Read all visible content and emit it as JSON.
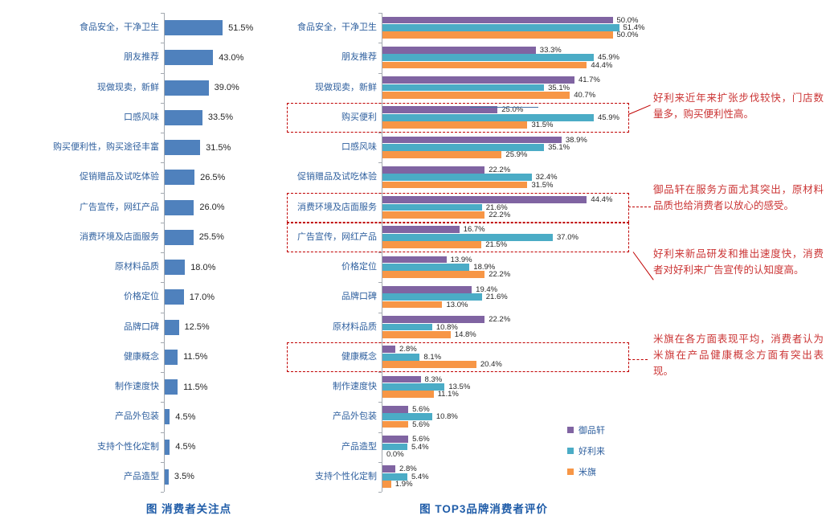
{
  "page": {
    "background": "#ffffff"
  },
  "chart_data": [
    {
      "type": "bar",
      "orientation": "horizontal",
      "title": "图  消费者关注点",
      "bar_color": "#4F81BD",
      "value_format": "percent_1dp",
      "xlim": [
        0,
        60
      ],
      "grid": false,
      "categories": [
        "食品安全，干净卫生",
        "朋友推荐",
        "现做现卖，新鲜",
        "口感风味",
        "购买便利性，购买途径丰富",
        "促销赠品及试吃体验",
        "广告宣传，网红产品",
        "消费环境及店面服务",
        "原材料品质",
        "价格定位",
        "品牌口碑",
        "健康概念",
        "制作速度快",
        "产品外包装",
        "支持个性化定制",
        "产品造型"
      ],
      "values": [
        51.5,
        43.0,
        39.0,
        33.5,
        31.5,
        26.5,
        26.0,
        25.5,
        18.0,
        17.0,
        12.5,
        11.5,
        11.5,
        4.5,
        4.5,
        3.5
      ]
    },
    {
      "type": "bar",
      "orientation": "horizontal",
      "title": "图 TOP3品牌消费者评价",
      "value_format": "percent_1dp",
      "xlim": [
        0,
        55
      ],
      "grid": false,
      "legend_position": "right-bottom",
      "categories": [
        "食品安全，干净卫生",
        "朋友推荐",
        "现做现卖，新鲜",
        "购买便利",
        "口感风味",
        "促销赠品及试吃体验",
        "消费环境及店面服务",
        "广告宣传，网红产品",
        "价格定位",
        "品牌口碑",
        "原材料品质",
        "健康概念",
        "制作速度快",
        "产品外包装",
        "产品造型",
        "支持个性化定制"
      ],
      "series": [
        {
          "name": "御品轩",
          "color": "#8064A2",
          "values": [
            50.0,
            33.3,
            41.7,
            25.0,
            38.9,
            22.2,
            44.4,
            16.7,
            13.9,
            19.4,
            22.2,
            2.8,
            8.3,
            5.6,
            5.6,
            2.8
          ]
        },
        {
          "name": "好利来",
          "color": "#4BACC6",
          "values": [
            51.4,
            45.9,
            35.1,
            45.9,
            35.1,
            32.4,
            21.6,
            37.0,
            18.9,
            21.6,
            10.8,
            8.1,
            13.5,
            10.8,
            5.4,
            5.4
          ]
        },
        {
          "name": "米旗",
          "color": "#F79646",
          "values": [
            50.0,
            44.4,
            40.7,
            31.5,
            25.9,
            31.5,
            22.2,
            21.5,
            22.2,
            13.0,
            14.8,
            20.4,
            11.1,
            5.6,
            0.0,
            1.9
          ]
        }
      ],
      "highlighted_rows": [
        3,
        6,
        7,
        11
      ]
    }
  ],
  "annotations": [
    {
      "text": "好利来近年来扩张步伐较快，门店数量多，购买便利性高。",
      "target_category": "购买便利"
    },
    {
      "text": "御品轩在服务方面尤其突出，原材料品质也给消费者以放心的感受。",
      "target_category": "消费环境及店面服务"
    },
    {
      "text": "好利来新品研发和推出速度快，消费者对好利来广告宣传的认知度高。",
      "target_category": "广告宣传，网红产品"
    },
    {
      "text": "米旗在各方面表现平均，消费者认为米旗在产品健康概念方面有突出表现。",
      "target_category": "健康概念"
    }
  ],
  "colors": {
    "bar_blue": "#4F81BD",
    "series_purple": "#8064A2",
    "series_teal": "#4BACC6",
    "series_orange": "#F79646",
    "category_label_blue": "#2E5F9E",
    "title_blue": "#1F5CA8",
    "annotation_red": "#CB3434",
    "highlight_box_red": "#C00000",
    "axis_gray": "#A3A9B0"
  }
}
